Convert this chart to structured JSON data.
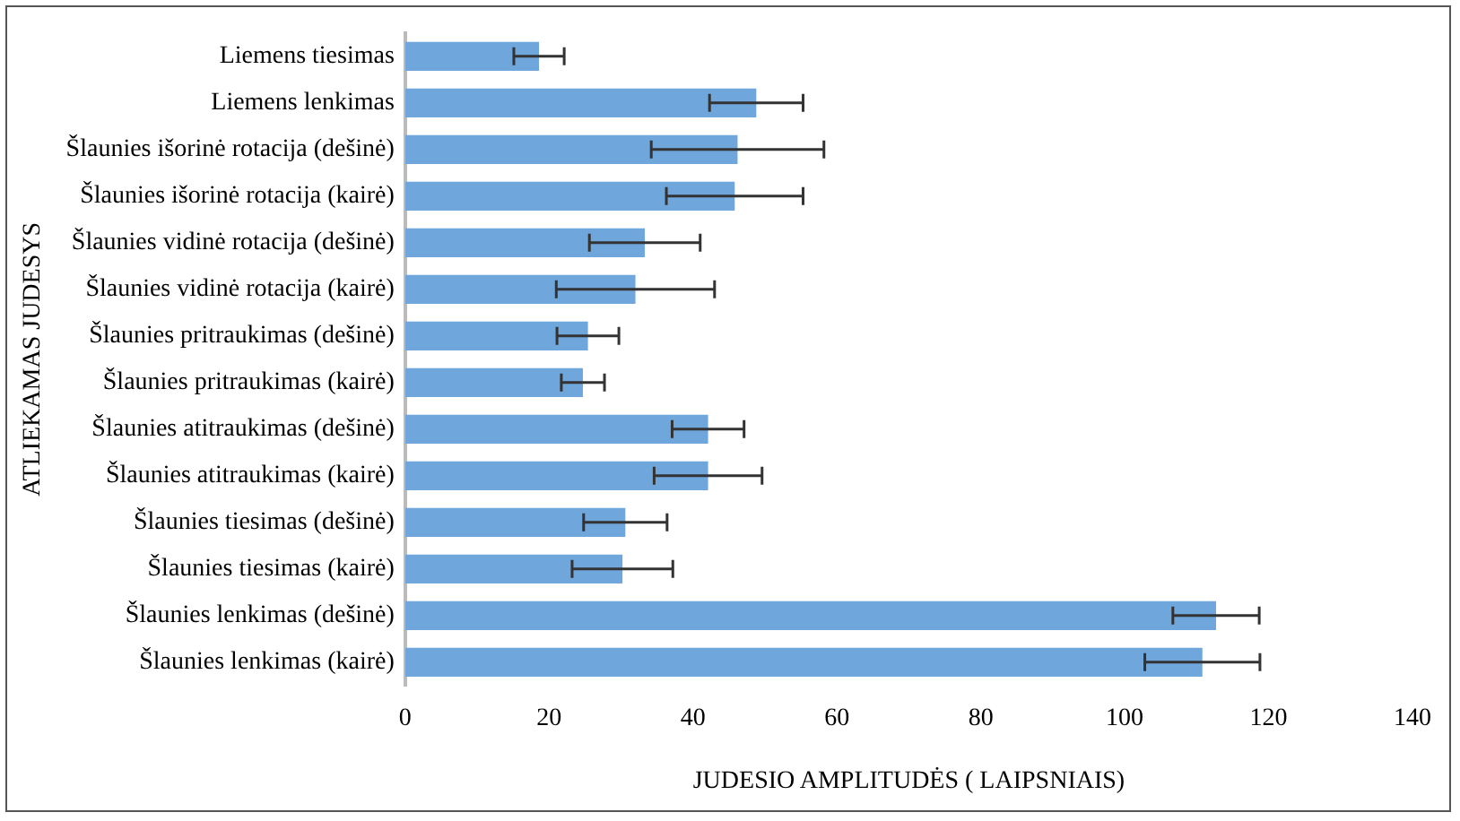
{
  "chart_data": {
    "type": "bar",
    "orientation": "horizontal",
    "xlabel": "JUDESIO AMPLITUDĖS ( LAIPSNIAIS)",
    "ylabel": "ATLIEKAMAS JUDESYS",
    "categories": [
      "Liemens tiesimas",
      "Liemens lenkimas",
      "Šlaunies išorinė rotacija (dešinė)",
      "Šlaunies išorinė rotacija (kairė)",
      "Šlaunies vidinė rotacija (dešinė)",
      "Šlaunies vidinė rotacija (kairė)",
      "Šlaunies pritraukimas (dešinė)",
      "Šlaunies pritraukimas (kairė)",
      "Šlaunies atitraukimas (dešinė)",
      "Šlaunies atitraukimas (kairė)",
      "Šlaunies tiesimas (dešinė)",
      "Šlaunies tiesimas (kairė)",
      "Šlaunies lenkimas (dešinė)",
      "Šlaunies lenkimas (kairė)"
    ],
    "values": [
      18.6,
      48.8,
      46.2,
      45.8,
      33.3,
      32,
      25.4,
      24.7,
      42.1,
      42.1,
      30.6,
      30.2,
      112.7,
      110.8
    ],
    "errors": [
      3.5,
      6.5,
      12,
      9.5,
      7.7,
      11,
      4.3,
      3,
      5,
      7.5,
      5.8,
      7,
      6,
      8
    ],
    "color": "#6fa7dc",
    "xlim": [
      0,
      140
    ],
    "xticks": [
      0,
      20,
      40,
      60,
      80,
      100,
      120,
      140
    ],
    "grid": false,
    "legend": false
  }
}
